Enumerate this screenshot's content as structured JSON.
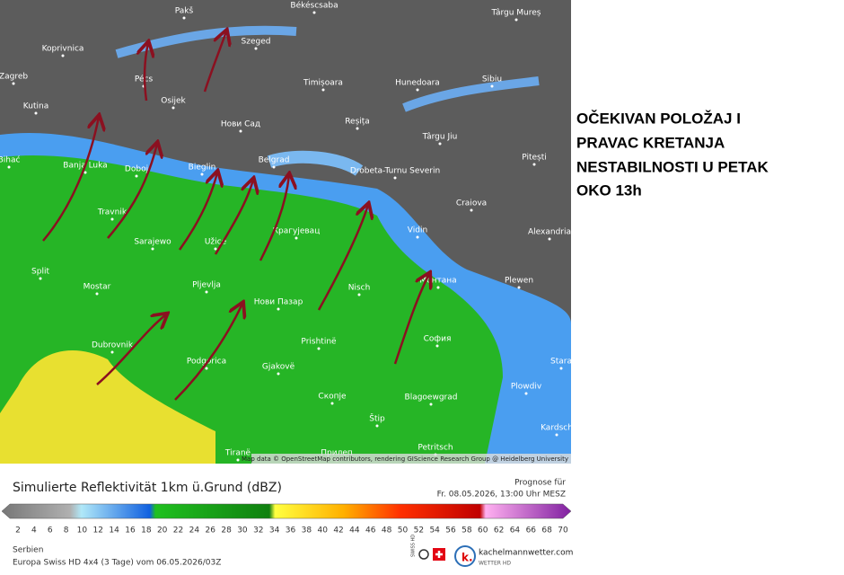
{
  "map": {
    "labels": [
      "Pakš",
      "Békéscsaba",
      "Târgu Mureș",
      "Koprivnica",
      "Pécs",
      "Szeged",
      "Zagreb",
      "Timișoara",
      "Hunedoara",
      "Sibiu",
      "Kutina",
      "Osijek",
      "Нови Сад",
      "Reșița",
      "Târgu Jiu",
      "Pitești",
      "Bihać",
      "Banja Luka",
      "Doboj",
      "Bieglin",
      "Belgrad",
      "Drobeta-Turnu Severin",
      "Craiova",
      "Travnik",
      "Sarajewo",
      "Užice",
      "Крагујевац",
      "Vidin",
      "Alexandria",
      "Split",
      "Mostar",
      "Pljevlja",
      "Nisch",
      "Монтана",
      "Plewen",
      "Нови Пазар",
      "Dubrovnik",
      "Prishtinë",
      "София",
      "Podgorica",
      "Gjakovë",
      "Скопје",
      "Blagoewgrad",
      "Plowdiv",
      "Stara",
      "Kardsch",
      "Štip",
      "Tiranë",
      "Прилеп",
      "Petritsch"
    ],
    "attribution": "Map data © OpenStreetMap contributors, rendering GIScience Research Group @ Heidelberg University"
  },
  "annotation": {
    "lines": [
      "OČEKIVAN POLOŽAJ I",
      "PRAVAC KRETANJA",
      "NESTABILNOSTI U PETAK",
      "OKO 13h"
    ]
  },
  "legend": {
    "title": "Simulierte Reflektivität 1km ü.Grund (dBZ)",
    "prognose_label": "Prognose für",
    "prognose_time": "Fr. 08.05.2026, 13:00 Uhr MESZ",
    "ticks": [
      2,
      4,
      6,
      8,
      10,
      12,
      14,
      16,
      18,
      20,
      22,
      24,
      26,
      28,
      30,
      32,
      34,
      36,
      38,
      40,
      42,
      44,
      46,
      48,
      50,
      52,
      54,
      56,
      58,
      60,
      62,
      64,
      66,
      68,
      70
    ]
  },
  "footer": {
    "region": "Serbien",
    "model": "Europa Swiss HD 4x4 (3 Tage) vom 06.05.2026/03Z",
    "logo_small": "SWISS HD",
    "brand": "kachelmannwetter.com",
    "brand_sub": "WETTER HD"
  }
}
